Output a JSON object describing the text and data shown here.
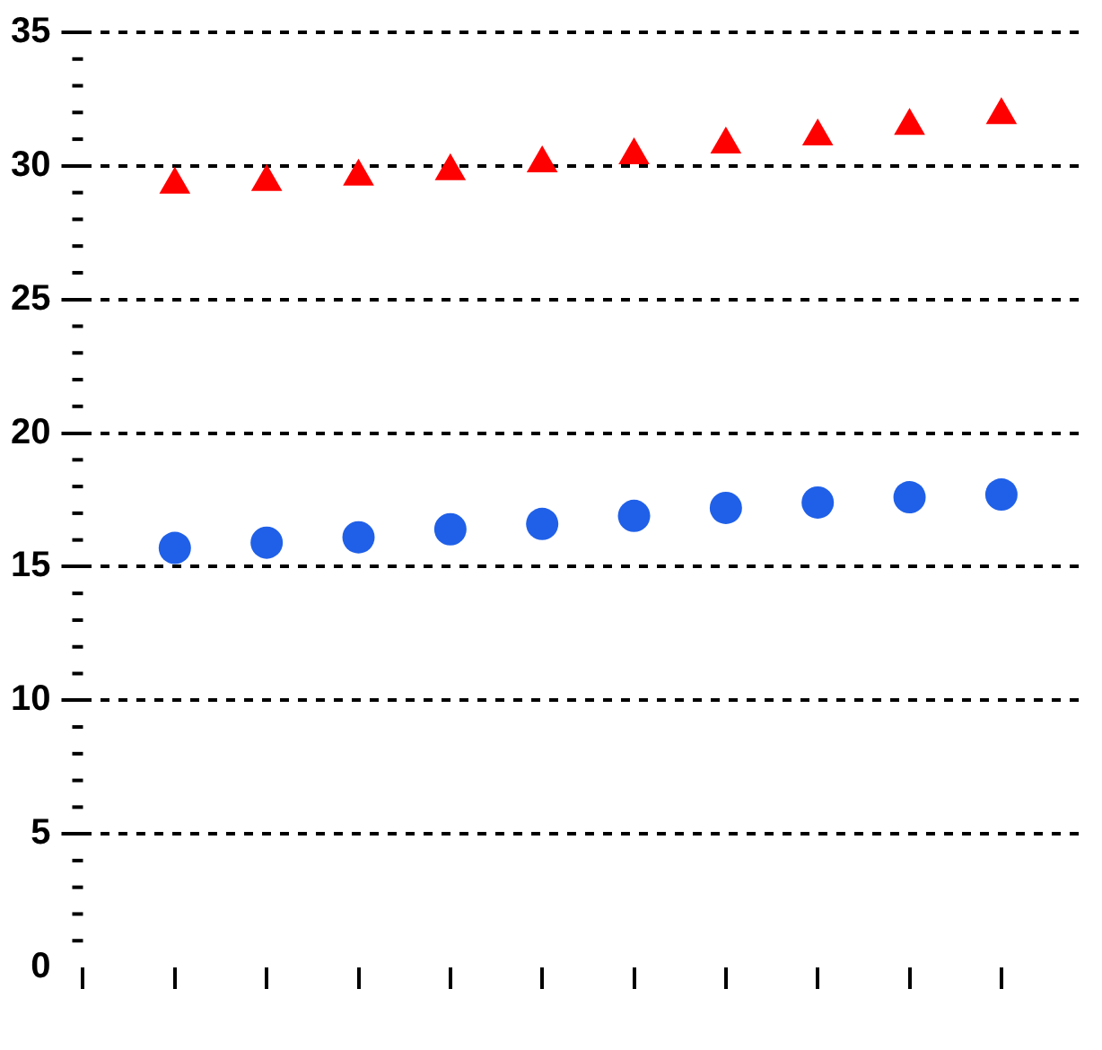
{
  "chart_data": {
    "type": "scatter",
    "categories": [
      null,
      null,
      null,
      null,
      null,
      null,
      null,
      null,
      null,
      null
    ],
    "series": [
      {
        "color": "#ff0000",
        "marker": "triangle",
        "values": [
          29.3,
          29.4,
          29.6,
          29.8,
          30.1,
          30.4,
          30.8,
          31.1,
          31.5,
          31.9
        ]
      },
      {
        "color": "#2060e8",
        "marker": "circle",
        "values": [
          15.7,
          15.9,
          16.1,
          16.4,
          16.6,
          16.9,
          17.2,
          17.4,
          17.6,
          17.7
        ]
      }
    ],
    "ylim": [
      0,
      35
    ],
    "yticks": [
      0,
      5,
      10,
      15,
      20,
      25,
      30,
      35
    ],
    "grid": "y",
    "legend": false
  }
}
